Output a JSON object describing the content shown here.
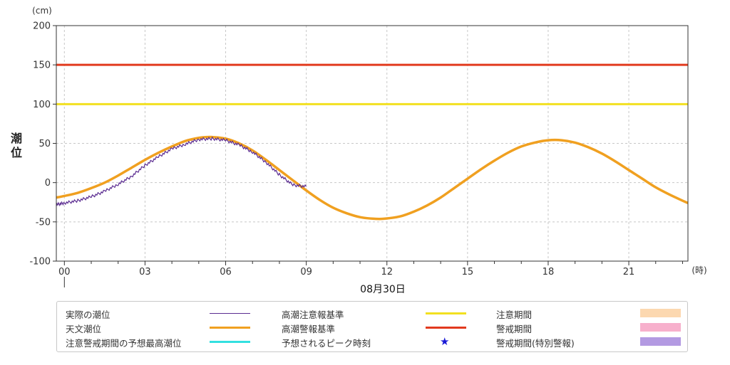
{
  "chart_data": {
    "type": "line",
    "ylabel": "潮位",
    "yunit": "(cm)",
    "xunit": "(時)",
    "date_label": "08月30日",
    "ylim": [
      -100,
      200
    ],
    "yticks": [
      -100,
      -50,
      0,
      50,
      100,
      150,
      200
    ],
    "xlim": [
      -0.3,
      23.2
    ],
    "xticks": [
      {
        "x": 0,
        "label": "00"
      },
      {
        "x": 3,
        "label": "03"
      },
      {
        "x": 6,
        "label": "06"
      },
      {
        "x": 9,
        "label": "09"
      },
      {
        "x": 12,
        "label": "12"
      },
      {
        "x": 15,
        "label": "15"
      },
      {
        "x": 18,
        "label": "18"
      },
      {
        "x": 21,
        "label": "21"
      }
    ],
    "grid": true,
    "series": [
      {
        "name": "天文潮位",
        "color": "#f0a020",
        "x": [
          -0.3,
          0,
          0.5,
          1,
          1.5,
          2,
          2.5,
          3,
          3.5,
          4,
          4.5,
          5,
          5.3,
          5.5,
          6,
          6.5,
          7,
          7.5,
          8,
          8.5,
          9,
          9.5,
          10,
          10.5,
          11,
          11.5,
          11.9,
          12.5,
          13,
          13.5,
          14,
          14.5,
          15,
          15.5,
          16,
          16.5,
          17,
          17.5,
          18,
          18.5,
          19,
          19.5,
          20,
          20.5,
          21,
          21.5,
          22,
          22.5,
          23,
          23.2
        ],
        "values": [
          -19,
          -17,
          -13,
          -7,
          0,
          9,
          19,
          29,
          38,
          46,
          53,
          57,
          58,
          58,
          56,
          50,
          41,
          29,
          16,
          3,
          -10,
          -22,
          -32,
          -39,
          -44,
          -46,
          -46,
          -43,
          -37,
          -29,
          -19,
          -7,
          5,
          17,
          28,
          38,
          46,
          51,
          54,
          54,
          51,
          45,
          37,
          27,
          16,
          5,
          -6,
          -15,
          -23,
          -26
        ]
      },
      {
        "name": "実際の潮位",
        "color": "#5b2c91",
        "x": [
          -0.3,
          0,
          0.5,
          1,
          1.5,
          2,
          2.5,
          3,
          3.5,
          4,
          4.5,
          5,
          5.5,
          6,
          6.5,
          7,
          7.5,
          8,
          8.5,
          9
        ],
        "values": [
          -28,
          -26,
          -23,
          -18,
          -11,
          -2,
          8,
          22,
          33,
          43,
          49,
          55,
          56,
          54,
          48,
          39,
          26,
          10,
          -3,
          -5
        ]
      }
    ],
    "thresholds": [
      {
        "name": "高潮注意報基準",
        "value": 100,
        "color": "#f2e020"
      },
      {
        "name": "高潮警報基準",
        "value": 150,
        "color": "#e23a1e"
      }
    ],
    "legend": [
      {
        "label": "実際の潮位",
        "kind": "thin-line",
        "color": "#5b2c91"
      },
      {
        "label": "天文潮位",
        "kind": "line",
        "color": "#f0a020"
      },
      {
        "label": "注意警戒期間の予想最高潮位",
        "kind": "line",
        "color": "#33e0e0"
      },
      {
        "label": "高潮注意報基準",
        "kind": "line",
        "color": "#f2e020"
      },
      {
        "label": "高潮警報基準",
        "kind": "line",
        "color": "#e23a1e"
      },
      {
        "label": "予想されるピーク時刻",
        "kind": "star",
        "color": "#1a1ad6",
        "symbol": "★"
      },
      {
        "label": "注意期間",
        "kind": "box",
        "color": "#fcd8b0"
      },
      {
        "label": "警戒期間",
        "kind": "box",
        "color": "#f7b0cc"
      },
      {
        "label": "警戒期間(特別警報)",
        "kind": "box",
        "color": "#b39ae2"
      }
    ]
  }
}
